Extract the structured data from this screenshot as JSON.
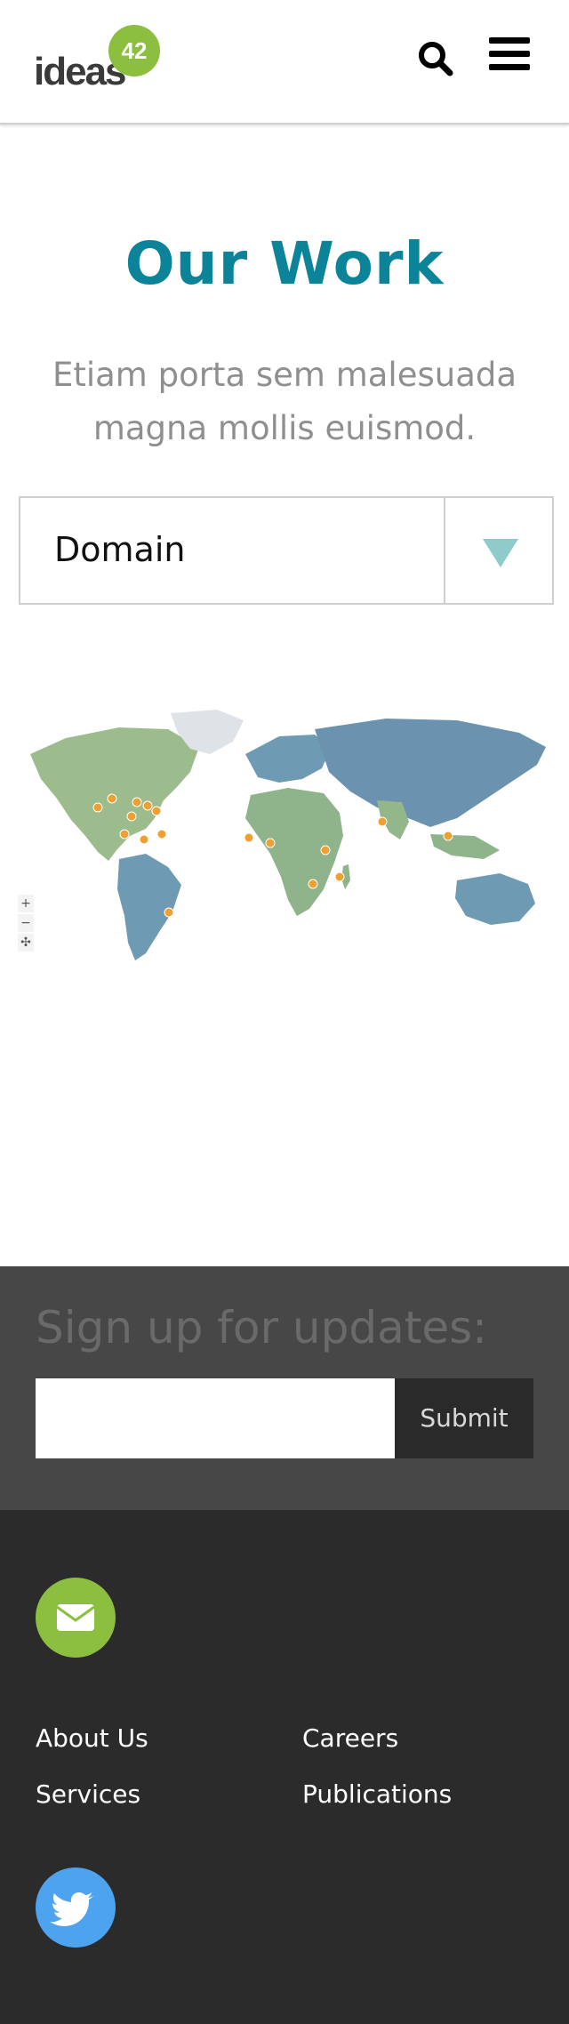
{
  "header": {
    "logo_text": "ideas",
    "logo_badge": "42",
    "search_icon": "search-icon",
    "menu_icon": "hamburger-menu-icon"
  },
  "hero": {
    "title": "Our Work",
    "subtitle": "Etiam porta sem malesuada magna mollis euismod."
  },
  "filter": {
    "label": "Domain",
    "toggle_icon": "triangle-down-icon",
    "accent_color": "#8fcbc8"
  },
  "map": {
    "zoom_in": "+",
    "zoom_out": "−",
    "pan": "✣",
    "marker_color": "#f0a030"
  },
  "signup": {
    "title": "Sign up for updates:",
    "input_placeholder": "",
    "submit_label": "Submit"
  },
  "footer": {
    "mail_icon": "envelope-icon",
    "links": [
      "About Us",
      "Careers",
      "Services",
      "Publications"
    ],
    "twitter_icon": "twitter-icon",
    "mail_color": "#8cbf3f",
    "twitter_color": "#4ea3ef"
  },
  "colors": {
    "title": "#0b8398",
    "subtitle": "#8f8f8f",
    "signup_bg": "#474747",
    "footer_bg": "#2b2b2b"
  }
}
